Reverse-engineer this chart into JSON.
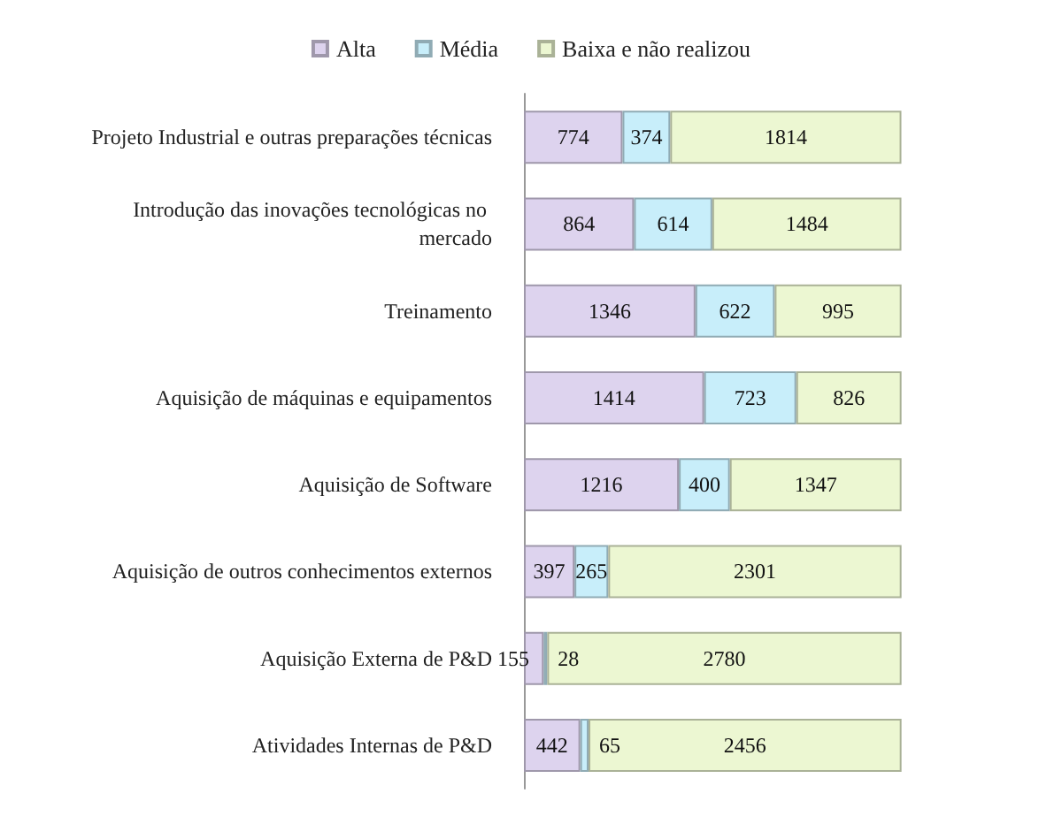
{
  "chart_data": {
    "type": "bar",
    "orientation": "horizontal",
    "stacked": true,
    "data_labels": true,
    "legend": "top",
    "categories": [
      "Projeto Industrial e outras preparações técnicas",
      "Introdução das inovações tecnológicas no mercado",
      "Treinamento",
      "Aquisição de máquinas e equipamentos",
      "Aquisição de Software",
      "Aquisição de outros conhecimentos externos",
      "Aquisição Externa de P&D",
      "Atividades Internas de P&D"
    ],
    "series": [
      {
        "name": "Alta",
        "color": "#ddd3ee",
        "values": [
          774,
          864,
          1346,
          1414,
          1216,
          397,
          155,
          442
        ]
      },
      {
        "name": "Média",
        "color": "#c8eefa",
        "values": [
          374,
          614,
          622,
          723,
          400,
          265,
          28,
          65
        ]
      },
      {
        "name": "Baixa e não realizou",
        "color": "#ecf7d2",
        "values": [
          1814,
          1484,
          995,
          826,
          1347,
          2301,
          2780,
          2456
        ]
      }
    ]
  }
}
